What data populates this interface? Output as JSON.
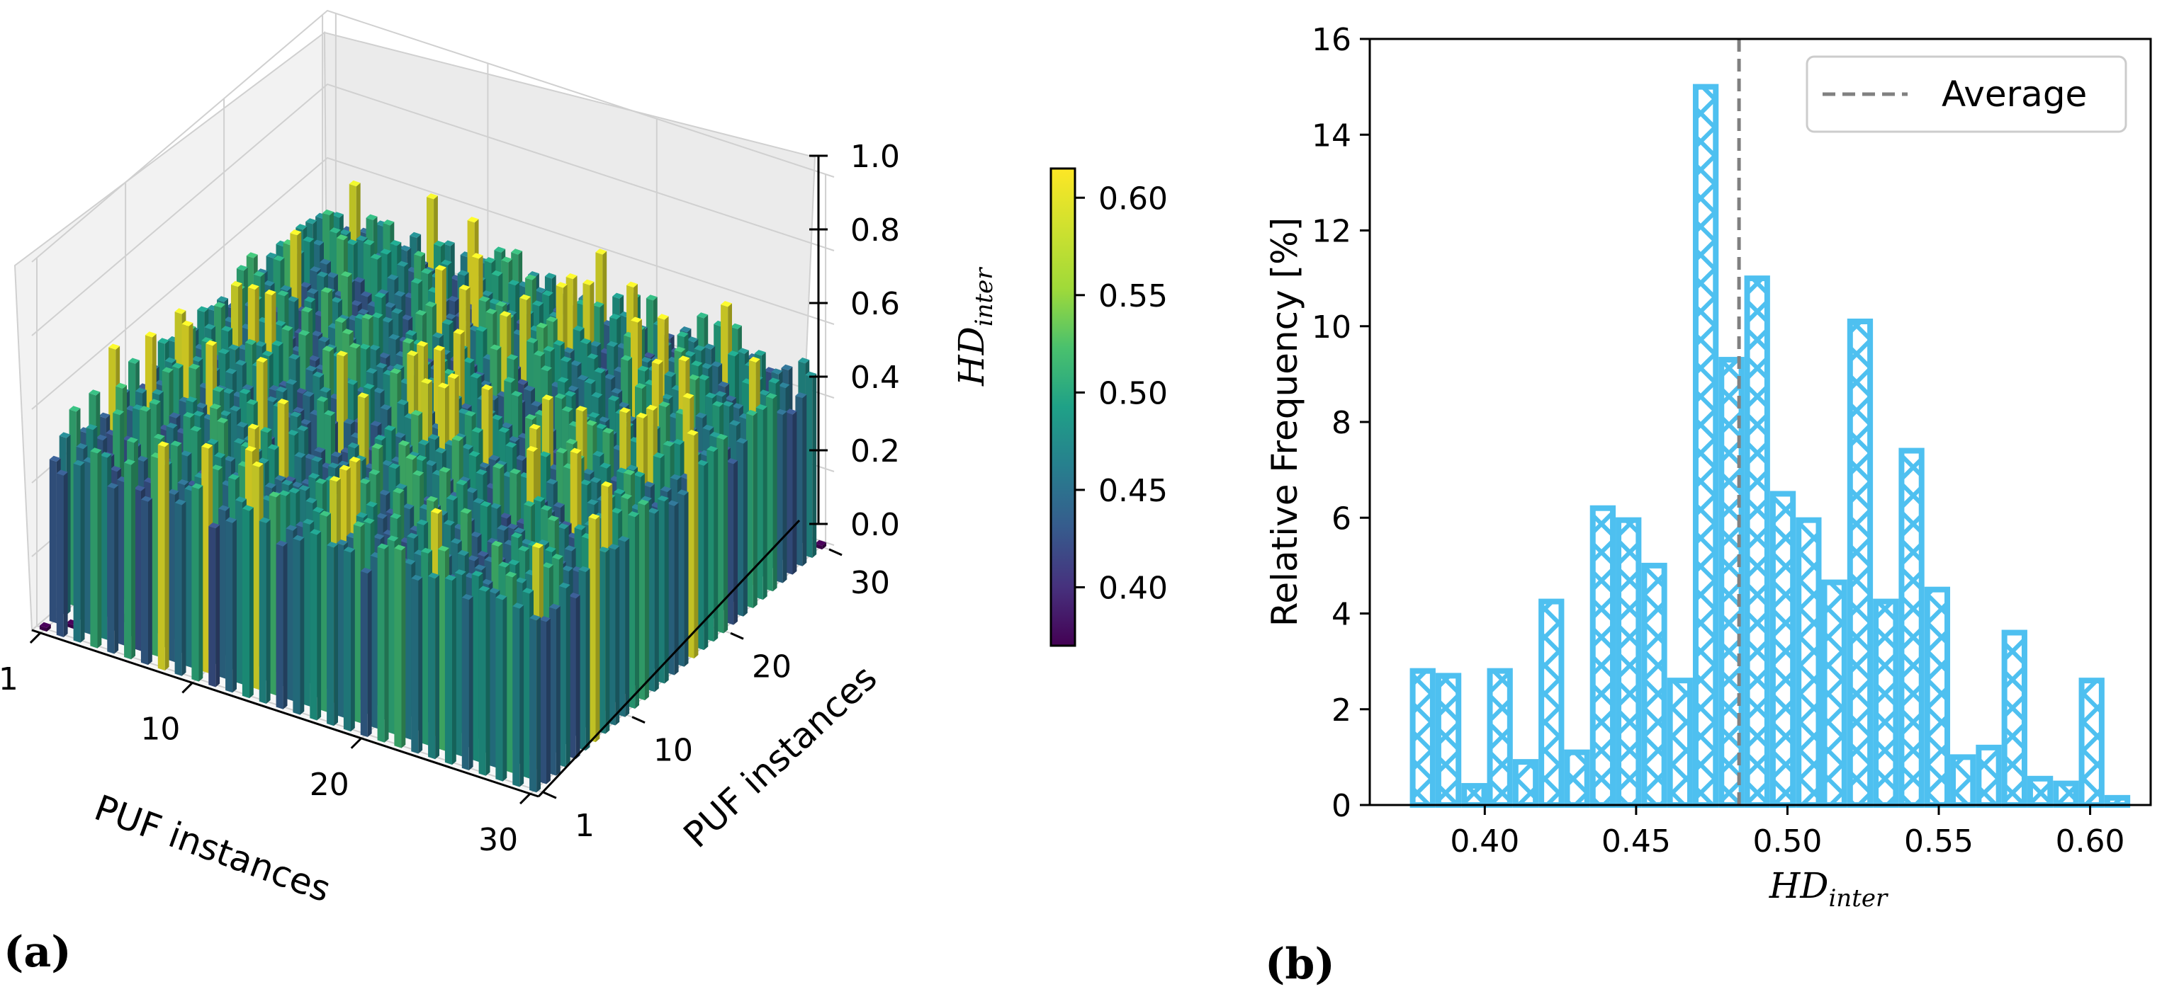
{
  "panel_labels": {
    "a": "(a)",
    "b": "(b)"
  },
  "chart_data": [
    {
      "type": "bar3d",
      "panel": "(a)",
      "xlabel": "PUF instances",
      "ylabel": "PUF instances",
      "zlabel": "HD",
      "zlabel_sub": "inter",
      "x_ticks": [
        "1",
        "10",
        "20",
        "30"
      ],
      "y_ticks": [
        "1",
        "10",
        "20",
        "30"
      ],
      "z_ticks": [
        "0.0",
        "0.2",
        "0.4",
        "0.6",
        "0.8",
        "1.0"
      ],
      "zlim": [
        0,
        1
      ],
      "grid_size": 30,
      "diagonal_value": 0.0,
      "off_diagonal_range": [
        0.37,
        0.61
      ],
      "colormap": "viridis",
      "colorbar": {
        "range": [
          0.37,
          0.615
        ],
        "ticks": [
          "0.40",
          "0.45",
          "0.50",
          "0.55",
          "0.60"
        ]
      }
    },
    {
      "type": "bar",
      "panel": "(b)",
      "xlabel": "HD",
      "xlabel_sub": "inter",
      "ylabel": "Relative Frequency [%]",
      "xlim": [
        0.362,
        0.62
      ],
      "ylim": [
        0,
        16
      ],
      "x_ticks": [
        "0.40",
        "0.45",
        "0.50",
        "0.55",
        "0.60"
      ],
      "y_ticks": [
        "0",
        "2",
        "4",
        "6",
        "8",
        "10",
        "12",
        "14",
        "16"
      ],
      "bin_width": 0.0085,
      "bin_centers": [
        0.3795,
        0.388,
        0.3965,
        0.405,
        0.4135,
        0.422,
        0.4305,
        0.439,
        0.4475,
        0.456,
        0.4645,
        0.473,
        0.4815,
        0.49,
        0.4985,
        0.507,
        0.5155,
        0.524,
        0.5325,
        0.541,
        0.5495,
        0.558,
        0.5665,
        0.575,
        0.5835,
        0.592,
        0.6005,
        0.609
      ],
      "values": [
        2.8,
        2.7,
        0.4,
        2.8,
        0.9,
        4.25,
        1.1,
        6.2,
        5.95,
        5.0,
        2.6,
        15.0,
        9.3,
        11.0,
        6.5,
        5.95,
        4.65,
        10.1,
        4.25,
        7.4,
        4.5,
        1.0,
        1.2,
        3.6,
        0.55,
        0.45,
        2.6,
        0.15
      ],
      "average_line": {
        "value": 0.484,
        "label": "Average",
        "color": "#808080"
      },
      "bar_color": "#4ec0f0",
      "hatch": "x"
    }
  ]
}
